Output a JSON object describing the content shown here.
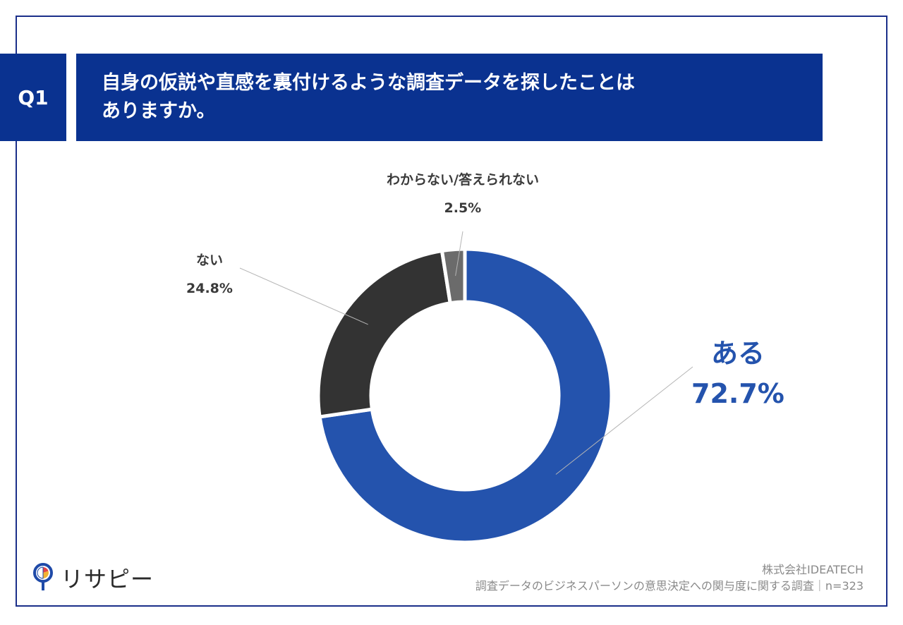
{
  "question": {
    "badge": "Q1",
    "title_line1": "自身の仮説や直感を裏付けるような調査データを探したことは",
    "title_line2": "ありますか。"
  },
  "chart_data": {
    "type": "pie",
    "style": "donut",
    "unit": "%",
    "slices": [
      {
        "label": "ある",
        "value": 72.7,
        "value_label": "72.7%",
        "color": "#2453ad"
      },
      {
        "label": "ない",
        "value": 24.8,
        "value_label": "24.8%",
        "color": "#333333"
      },
      {
        "label": "わからない/答えられない",
        "value": 2.5,
        "value_label": "2.5%",
        "color": "#6b6b6b"
      }
    ],
    "start_angle": "12 o'clock",
    "direction": "clockwise"
  },
  "footer": {
    "logo_text": "リサピー",
    "company": "株式会社IDEATECH",
    "survey": "調査データのビジネスパーソンの意思決定への関与度に関する調査｜n=323"
  },
  "colors": {
    "primary": "#0a3290",
    "border": "#1b2f8a",
    "accent": "#2453ad"
  }
}
